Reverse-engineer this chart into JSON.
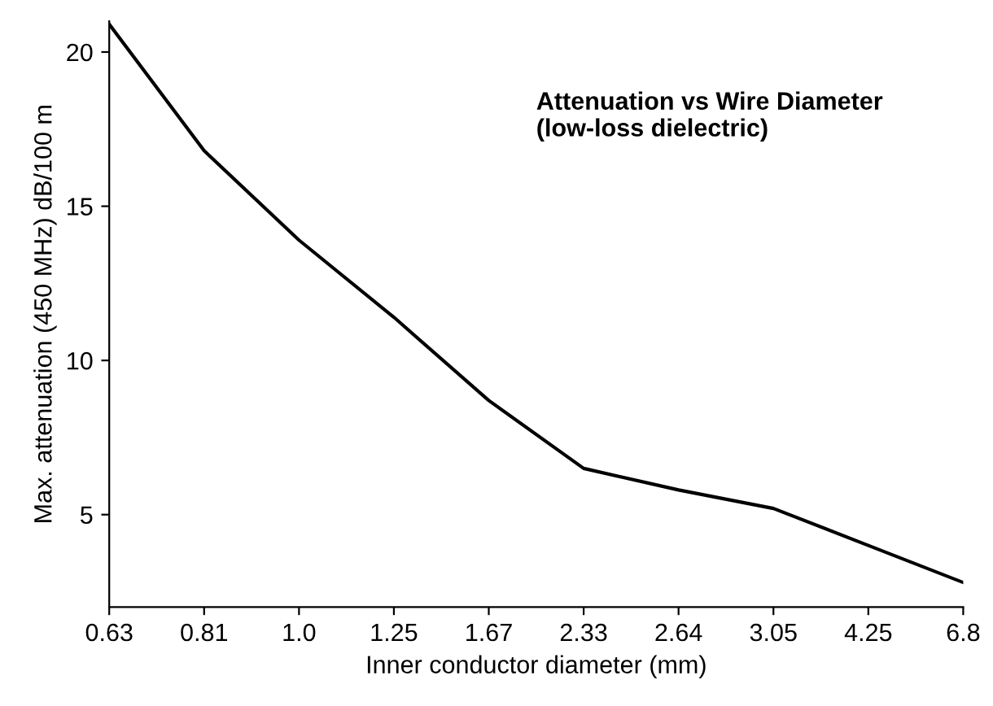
{
  "chart_data": {
    "type": "line",
    "title": "Attenuation vs Wire Diameter\n(low-loss dielectric)",
    "xlabel": "Inner conductor diameter (mm)",
    "ylabel": "Max. attenuation (450 MHz) dB/100 m",
    "categories": [
      "0.63",
      "0.81",
      "1.0",
      "1.25",
      "1.67",
      "2.33",
      "2.64",
      "3.05",
      "4.25",
      "6.8"
    ],
    "series": [
      {
        "color": "#000000",
        "values": [
          20.9,
          16.8,
          13.9,
          11.4,
          8.7,
          6.5,
          5.8,
          5.2,
          4.0,
          2.8
        ]
      }
    ],
    "ylim": [
      2,
      21
    ],
    "yticks": [
      5,
      10,
      15,
      20
    ],
    "grid": false,
    "legend": false,
    "marker": "none",
    "line_style": "solid"
  }
}
